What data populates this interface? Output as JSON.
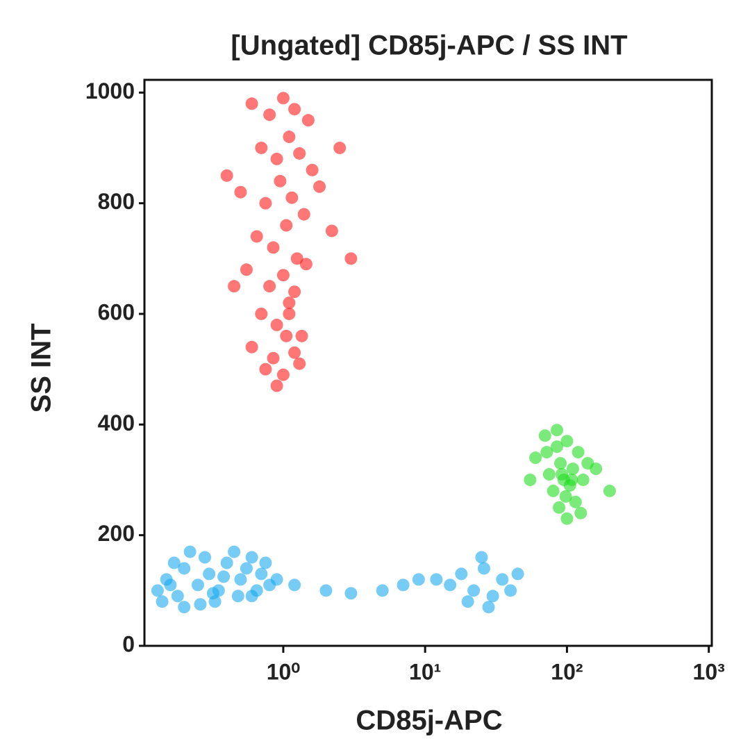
{
  "chart_data": {
    "type": "scatter",
    "title": "[Ungated] CD85j-APC / SS INT",
    "x_label": "CD85j-APC",
    "y_label": "SS INT",
    "x_scale": "log",
    "xlim": [
      0.105,
      1050
    ],
    "ylim": [
      0,
      1023
    ],
    "xticks": [
      {
        "value": 1,
        "label": "10⁰"
      },
      {
        "value": 10,
        "label": "10¹"
      },
      {
        "value": 100,
        "label": "10²"
      },
      {
        "value": 1000,
        "label": "10³"
      }
    ],
    "yticks": [
      0,
      200,
      400,
      600,
      800,
      1000
    ],
    "grid": false,
    "series": [
      {
        "color": "#ff1a1a",
        "x": [
          0.6,
          0.8,
          1.0,
          1.2,
          1.5,
          0.7,
          0.9,
          1.1,
          1.3,
          1.6,
          0.5,
          0.75,
          0.95,
          1.15,
          1.4,
          1.8,
          0.65,
          0.85,
          1.05,
          1.25,
          0.55,
          0.8,
          1.0,
          1.2,
          1.45,
          0.7,
          0.9,
          1.1,
          1.35,
          0.6,
          0.85,
          1.05,
          1.3,
          0.75,
          1.0,
          1.2,
          0.9,
          1.1,
          2.2,
          0.4,
          3.0,
          0.45,
          2.5
        ],
        "values": [
          980,
          960,
          990,
          970,
          950,
          900,
          880,
          920,
          890,
          860,
          820,
          800,
          840,
          810,
          780,
          830,
          740,
          720,
          760,
          700,
          680,
          650,
          670,
          640,
          690,
          600,
          580,
          620,
          560,
          540,
          520,
          560,
          510,
          500,
          490,
          530,
          470,
          600,
          750,
          850,
          700,
          650,
          900
        ]
      },
      {
        "color": "#22dd22",
        "x": [
          70,
          85,
          100,
          120,
          90,
          110,
          75,
          95,
          130,
          80,
          105,
          115,
          60,
          140,
          88,
          98,
          125,
          72,
          92,
          108,
          160,
          55,
          200,
          85,
          100
        ],
        "values": [
          380,
          360,
          370,
          350,
          330,
          320,
          310,
          300,
          300,
          280,
          290,
          260,
          340,
          330,
          250,
          270,
          240,
          350,
          310,
          300,
          320,
          300,
          280,
          390,
          230
        ]
      },
      {
        "color": "#1aaaee",
        "x": [
          0.13,
          0.15,
          0.18,
          0.2,
          0.25,
          0.3,
          0.35,
          0.4,
          0.5,
          0.6,
          0.7,
          0.8,
          0.14,
          0.17,
          0.22,
          0.28,
          0.33,
          0.45,
          0.55,
          0.65,
          0.16,
          0.2,
          0.26,
          0.32,
          0.38,
          0.48,
          0.6,
          0.75,
          0.9,
          1.2,
          2,
          3,
          5,
          7,
          9,
          15,
          18,
          22,
          26,
          30,
          35,
          40,
          20,
          28,
          45,
          12,
          25
        ],
        "values": [
          100,
          120,
          90,
          140,
          110,
          130,
          100,
          150,
          120,
          90,
          130,
          110,
          80,
          150,
          170,
          160,
          80,
          170,
          140,
          100,
          110,
          70,
          75,
          95,
          125,
          90,
          160,
          150,
          120,
          110,
          100,
          95,
          100,
          110,
          120,
          110,
          130,
          100,
          140,
          90,
          120,
          100,
          80,
          70,
          130,
          120,
          160
        ]
      }
    ]
  }
}
